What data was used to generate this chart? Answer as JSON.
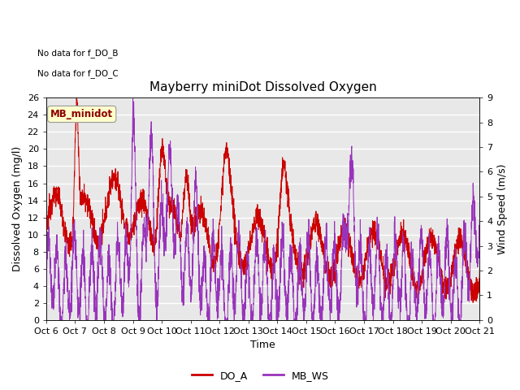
{
  "title": "Mayberry miniDot Dissolved Oxygen",
  "xlabel": "Time",
  "ylabel_left": "Dissolved Oxygen (mg/l)",
  "ylabel_right": "Wind Speed (m/s)",
  "no_data_text_1": "No data for f_DO_B",
  "no_data_text_2": "No data for f_DO_C",
  "legend_label_box": "MB_minidot",
  "legend_entries": [
    "DO_A",
    "MB_WS"
  ],
  "do_color": "#cc0000",
  "ws_color": "#9933bb",
  "ylim_left": [
    0,
    26
  ],
  "ylim_right": [
    0.0,
    9.0
  ],
  "yticks_left": [
    0,
    2,
    4,
    6,
    8,
    10,
    12,
    14,
    16,
    18,
    20,
    22,
    24,
    26
  ],
  "yticks_right": [
    0.0,
    1.0,
    2.0,
    3.0,
    4.0,
    5.0,
    6.0,
    7.0,
    8.0,
    9.0
  ],
  "xtick_labels": [
    "Oct 6",
    "Oct 7",
    "Oct 8",
    "Oct 9",
    "Oct 10",
    "Oct 11",
    "Oct 12",
    "Oct 13",
    "Oct 14",
    "Oct 15",
    "Oct 16",
    "Oct 17",
    "Oct 18",
    "Oct 19",
    "Oct 20",
    "Oct 21"
  ],
  "plot_bg_color": "#e8e8e8",
  "title_fontsize": 11,
  "label_fontsize": 9,
  "tick_fontsize": 8,
  "legend_box_facecolor": "#ffffcc",
  "legend_box_edgecolor": "#999999"
}
